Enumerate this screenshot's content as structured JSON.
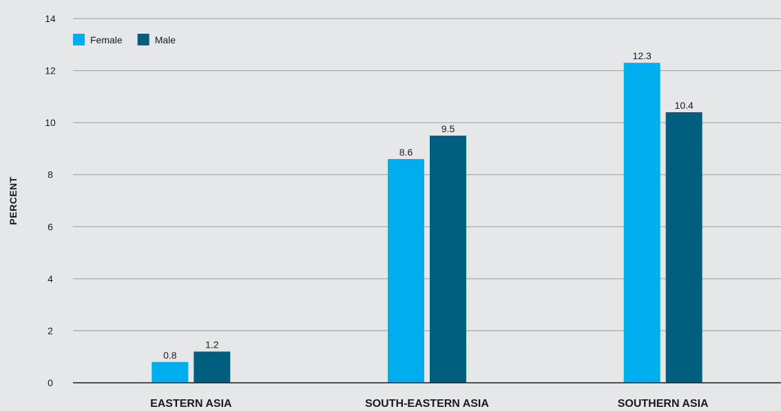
{
  "chart_data": {
    "type": "bar",
    "categories": [
      "EASTERN ASIA",
      "SOUTH-EASTERN ASIA",
      "SOUTHERN ASIA"
    ],
    "series": [
      {
        "name": "Female",
        "values": [
          0.8,
          8.6,
          12.3
        ],
        "color": "#00aeef"
      },
      {
        "name": "Male",
        "values": [
          1.2,
          9.5,
          10.4
        ],
        "color": "#005f7f"
      }
    ],
    "ylabel": "PERCENT",
    "ylim": [
      0,
      14
    ],
    "yticks": [
      0,
      2,
      4,
      6,
      8,
      10,
      12,
      14
    ],
    "grid": true,
    "legend": "top-left",
    "data_labels": true
  },
  "colors": {
    "background": "#e6e7e8",
    "grid": "#9a9a9a",
    "axis": "#1a1a1a"
  }
}
